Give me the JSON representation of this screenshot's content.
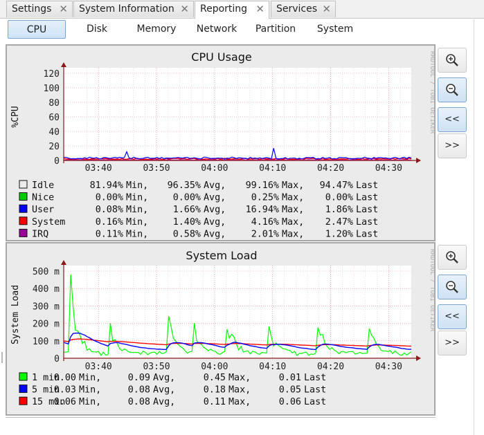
{
  "tabs": [
    {
      "label": "Settings",
      "active": false
    },
    {
      "label": "System Information",
      "active": false
    },
    {
      "label": "Reporting",
      "active": true
    },
    {
      "label": "Services",
      "active": false
    }
  ],
  "subtabs": [
    {
      "label": "CPU",
      "active": true
    },
    {
      "label": "Disk",
      "active": false
    },
    {
      "label": "Memory",
      "active": false
    },
    {
      "label": "Network",
      "active": false
    },
    {
      "label": "Partition",
      "active": false
    },
    {
      "label": "System",
      "active": false
    }
  ],
  "controls": {
    "zoom_in": "zoom-in-icon",
    "zoom_out": "zoom-out-icon",
    "back": "<<",
    "forward": ">>"
  },
  "watermark": "RRDTOOL / TOBI OETIKER",
  "chart_data": [
    {
      "type": "line",
      "title": "CPU Usage",
      "ylabel": "%CPU",
      "xlabel": "",
      "ylim": [
        0,
        120
      ],
      "yticks": [
        "0",
        "20",
        "40",
        "60",
        "80",
        "100",
        "120"
      ],
      "xticks": [
        "03:40",
        "03:50",
        "04:00",
        "04:10",
        "04:20",
        "04:30"
      ],
      "grid": true,
      "series": [
        {
          "name": "Idle",
          "color": "#ececec",
          "min": "81.94%",
          "avg": "96.35%",
          "max": "99.16%",
          "last": "94.47%"
        },
        {
          "name": "Nice",
          "color": "#00cc00",
          "min": "0.00%",
          "avg": "0.00%",
          "max": "0.25%",
          "last": "0.00%"
        },
        {
          "name": "User",
          "color": "#0000ff",
          "min": "0.08%",
          "avg": "1.66%",
          "max": "16.94%",
          "last": "1.86%"
        },
        {
          "name": "System",
          "color": "#ff0000",
          "min": "0.16%",
          "avg": "1.40%",
          "max": "4.16%",
          "last": "2.47%"
        },
        {
          "name": "IRQ",
          "color": "#990099",
          "min": "0.11%",
          "avg": "0.58%",
          "max": "2.01%",
          "last": "1.20%"
        }
      ]
    },
    {
      "type": "line",
      "title": "System Load",
      "ylabel": "System Load",
      "xlabel": "",
      "ylim": [
        0,
        500
      ],
      "yticks": [
        "0",
        "100 m",
        "200 m",
        "300 m",
        "400 m",
        "500 m"
      ],
      "xticks": [
        "03:40",
        "03:50",
        "04:00",
        "04:10",
        "04:20",
        "04:30"
      ],
      "grid": true,
      "series": [
        {
          "name": "1 min",
          "color": "#00ff00",
          "min": "0.00",
          "avg": "0.09",
          "max": "0.45",
          "last": "0.01"
        },
        {
          "name": "5 min",
          "color": "#0000ff",
          "min": "0.03",
          "avg": "0.08",
          "max": "0.18",
          "last": "0.05"
        },
        {
          "name": "15 min",
          "color": "#ff0000",
          "min": "0.06",
          "avg": "0.08",
          "max": "0.11",
          "last": "0.06"
        }
      ]
    }
  ]
}
